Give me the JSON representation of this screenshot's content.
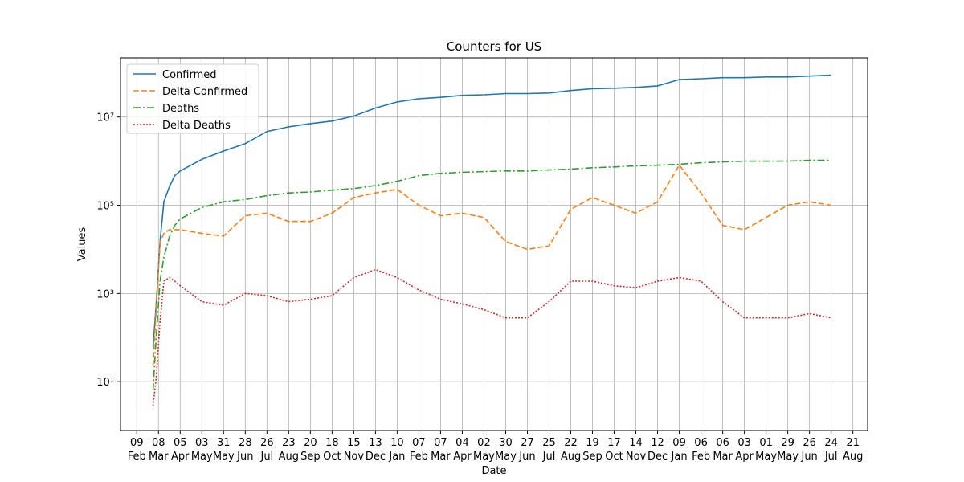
{
  "chart_data": {
    "type": "line",
    "title": "Counters for US",
    "xlabel": "Date",
    "ylabel": "Values",
    "yscale": "log",
    "grid": true,
    "legend": "upper left",
    "xlim": [
      -21,
      943
    ],
    "ylim": [
      0.78,
      220000000
    ],
    "xticks": [
      {
        "value": 0,
        "label": "09 Feb"
      },
      {
        "value": 28,
        "label": "08 Mar"
      },
      {
        "value": 56,
        "label": "05 Apr"
      },
      {
        "value": 84,
        "label": "03 May"
      },
      {
        "value": 112,
        "label": "31 May"
      },
      {
        "value": 140,
        "label": "28 Jun"
      },
      {
        "value": 168,
        "label": "26 Jul"
      },
      {
        "value": 196,
        "label": "23 Aug"
      },
      {
        "value": 224,
        "label": "20 Sep"
      },
      {
        "value": 252,
        "label": "18 Oct"
      },
      {
        "value": 280,
        "label": "15 Nov"
      },
      {
        "value": 308,
        "label": "13 Dec"
      },
      {
        "value": 336,
        "label": "10 Jan"
      },
      {
        "value": 364,
        "label": "07 Feb"
      },
      {
        "value": 392,
        "label": "07 Mar"
      },
      {
        "value": 420,
        "label": "04 Apr"
      },
      {
        "value": 448,
        "label": "02 May"
      },
      {
        "value": 476,
        "label": "30 May"
      },
      {
        "value": 504,
        "label": "27 Jun"
      },
      {
        "value": 532,
        "label": "25 Jul"
      },
      {
        "value": 560,
        "label": "22 Aug"
      },
      {
        "value": 588,
        "label": "19 Sep"
      },
      {
        "value": 616,
        "label": "17 Oct"
      },
      {
        "value": 644,
        "label": "14 Nov"
      },
      {
        "value": 672,
        "label": "12 Dec"
      },
      {
        "value": 700,
        "label": "09 Jan"
      },
      {
        "value": 728,
        "label": "06 Feb"
      },
      {
        "value": 756,
        "label": "06 Mar"
      },
      {
        "value": 784,
        "label": "03 Apr"
      },
      {
        "value": 812,
        "label": "01 May"
      },
      {
        "value": 840,
        "label": "29 May"
      },
      {
        "value": 868,
        "label": "26 Jun"
      },
      {
        "value": 896,
        "label": "24 Jul"
      },
      {
        "value": 924,
        "label": "21 Aug"
      }
    ],
    "yticks": [
      {
        "value": 10,
        "label": "10¹"
      },
      {
        "value": 1000,
        "label": "10³"
      },
      {
        "value": 100000,
        "label": "10⁵"
      },
      {
        "value": 10000000,
        "label": "10⁷"
      }
    ],
    "x": [
      21,
      25,
      30,
      35,
      42,
      49,
      56,
      84,
      112,
      140,
      168,
      196,
      224,
      252,
      280,
      308,
      336,
      364,
      392,
      420,
      448,
      476,
      504,
      532,
      560,
      588,
      616,
      644,
      672,
      700,
      728,
      756,
      784,
      812,
      840,
      868,
      896
    ],
    "series": [
      {
        "name": "Confirmed",
        "color": "#1f77b4",
        "linestyle": "solid",
        "values": [
          60,
          540,
          15000,
          120000,
          260000,
          470000,
          600000,
          1100000,
          1700000,
          2500000,
          4700000,
          6000000,
          7100000,
          8100000,
          10500000,
          16000000,
          22000000,
          26000000,
          28000000,
          31000000,
          32000000,
          34000000,
          34000000,
          35000000,
          40000000,
          44000000,
          45000000,
          47000000,
          51000000,
          71000000,
          74000000,
          78000000,
          78000000,
          81000000,
          81000000,
          85000000,
          89000000
        ]
      },
      {
        "name": "Delta Confirmed",
        "color": "#ff7f0e",
        "linestyle": "dashed",
        "values": [
          23,
          430,
          15000,
          23000,
          28000,
          28000,
          28000,
          23000,
          20000,
          58000,
          66000,
          43000,
          43000,
          66000,
          150000,
          190000,
          230000,
          100000,
          58000,
          66000,
          53000,
          15000,
          10000,
          12000,
          81000,
          150000,
          100000,
          66000,
          120000,
          810000,
          190000,
          35000,
          28000,
          53000,
          100000,
          120000,
          100000
        ]
      },
      {
        "name": "Deaths",
        "color": "#2ca02c",
        "linestyle": "dashdot",
        "values": [
          6.3,
          100,
          1900,
          6600,
          19000,
          35000,
          49000,
          89000,
          120000,
          135000,
          165000,
          190000,
          200000,
          220000,
          240000,
          280000,
          350000,
          470000,
          530000,
          560000,
          580000,
          600000,
          600000,
          630000,
          660000,
          710000,
          740000,
          780000,
          810000,
          850000,
          920000,
          960000,
          1000000,
          1000000,
          1000000,
          1050000,
          1050000
        ]
      },
      {
        "name": "Delta Deaths",
        "color": "#d62728",
        "linestyle": "dotted",
        "values": [
          2.8,
          12,
          230,
          1900,
          2300,
          1900,
          1500,
          650,
          540,
          1000,
          890,
          650,
          740,
          890,
          2300,
          3500,
          2300,
          1200,
          740,
          580,
          430,
          280,
          280,
          650,
          1900,
          1900,
          1500,
          1350,
          1900,
          2300,
          1900,
          650,
          280,
          280,
          280,
          350,
          280
        ]
      }
    ]
  }
}
